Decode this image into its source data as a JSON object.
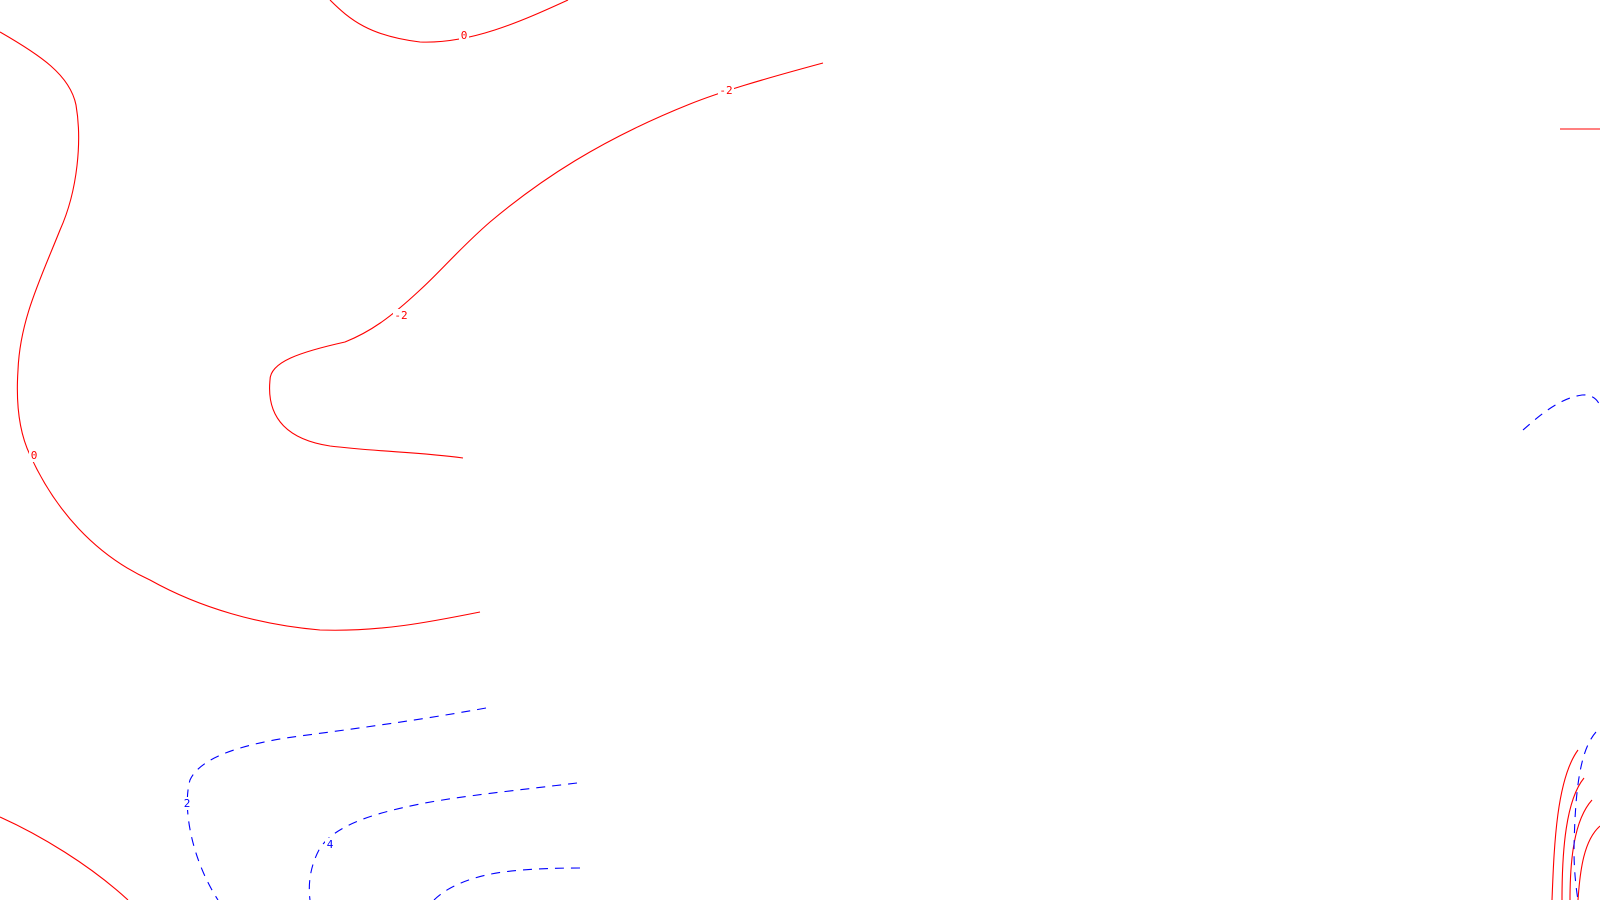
{
  "chart_data": {
    "type": "contour",
    "title": "",
    "xlabel": "",
    "ylabel": "",
    "grid": false,
    "legend": "none",
    "colors": {
      "negative_and_zero_levels": "#ff0000",
      "positive_levels": "#0000ff",
      "background": "#ffffff"
    },
    "line_styles": {
      "negative_and_zero_levels": "solid",
      "positive_levels": "dashed"
    },
    "levels_labeled": [
      "0",
      "-2",
      "2",
      "4"
    ],
    "contours": [
      {
        "level": 0,
        "label": "0",
        "style": "solid"
      },
      {
        "level": 0,
        "label": "0",
        "style": "solid"
      },
      {
        "level": -2,
        "label": "-2",
        "style": "solid"
      },
      {
        "level": -2,
        "label": "-2",
        "style": "solid"
      },
      {
        "level": 2,
        "label": "2",
        "style": "dashed"
      },
      {
        "level": 4,
        "label": "4",
        "style": "dashed"
      }
    ]
  }
}
